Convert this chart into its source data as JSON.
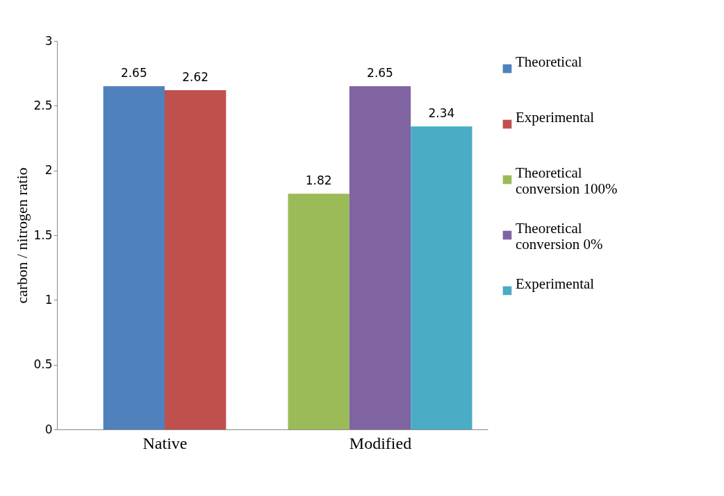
{
  "chart_data": {
    "type": "bar",
    "ylabel": "carbon / nitrogen ratio",
    "categories": [
      "Native",
      "Modified"
    ],
    "series": [
      {
        "name": "Theoretical",
        "color": "#4f81bd",
        "values": [
          2.65,
          null
        ]
      },
      {
        "name": "Experimental",
        "color": "#c0504d",
        "values": [
          2.62,
          null
        ]
      },
      {
        "name": "Theoretical conversion 100%",
        "color": "#9bbb59",
        "values": [
          null,
          1.82
        ]
      },
      {
        "name": "Theoretical conversion  0%",
        "color": "#8064a2",
        "values": [
          null,
          2.65
        ]
      },
      {
        "name": "Experimental",
        "color": "#4bacc6",
        "values": [
          null,
          2.34
        ]
      }
    ],
    "ylim": [
      0,
      3
    ],
    "yticks": [
      0,
      0.5,
      1,
      1.5,
      2,
      2.5,
      3
    ],
    "grid": false,
    "legend": "right",
    "data_labels": true
  }
}
